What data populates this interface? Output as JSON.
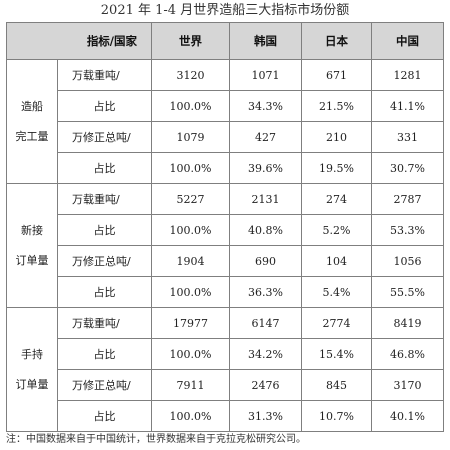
{
  "title": "2021 年 1-4 月世界造船三大指标市场份额",
  "header": {
    "label": "指标/国家",
    "columns": [
      "世界",
      "韩国",
      "日本",
      "中国"
    ]
  },
  "groups": [
    {
      "category": [
        "造船",
        "完工量"
      ],
      "rows": [
        {
          "metric": "万载重吨/",
          "values": [
            "3120",
            "1071",
            "671",
            "1281"
          ]
        },
        {
          "metric": "占比",
          "values": [
            "100.0%",
            "34.3%",
            "21.5%",
            "41.1%"
          ]
        },
        {
          "metric": "万修正总吨/",
          "values": [
            "1079",
            "427",
            "210",
            "331"
          ]
        },
        {
          "metric": "占比",
          "values": [
            "100.0%",
            "39.6%",
            "19.5%",
            "30.7%"
          ]
        }
      ]
    },
    {
      "category": [
        "新接",
        "订单量"
      ],
      "rows": [
        {
          "metric": "万载重吨/",
          "values": [
            "5227",
            "2131",
            "274",
            "2787"
          ]
        },
        {
          "metric": "占比",
          "values": [
            "100.0%",
            "40.8%",
            "5.2%",
            "53.3%"
          ]
        },
        {
          "metric": "万修正总吨/",
          "values": [
            "1904",
            "690",
            "104",
            "1056"
          ]
        },
        {
          "metric": "占比",
          "values": [
            "100.0%",
            "36.3%",
            "5.4%",
            "55.5%"
          ]
        }
      ]
    },
    {
      "category": [
        "手持",
        "订单量"
      ],
      "rows": [
        {
          "metric": "万载重吨/",
          "values": [
            "17977",
            "6147",
            "2774",
            "8419"
          ]
        },
        {
          "metric": "占比",
          "values": [
            "100.0%",
            "34.2%",
            "15.4%",
            "46.8%"
          ]
        },
        {
          "metric": "万修正总吨/",
          "values": [
            "7911",
            "2476",
            "845",
            "3170"
          ]
        },
        {
          "metric": "占比",
          "values": [
            "100.0%",
            "31.3%",
            "10.7%",
            "40.1%"
          ]
        }
      ]
    }
  ],
  "note": "注：中国数据来自于中国统计，世界数据来自于克拉克松研究公司。"
}
